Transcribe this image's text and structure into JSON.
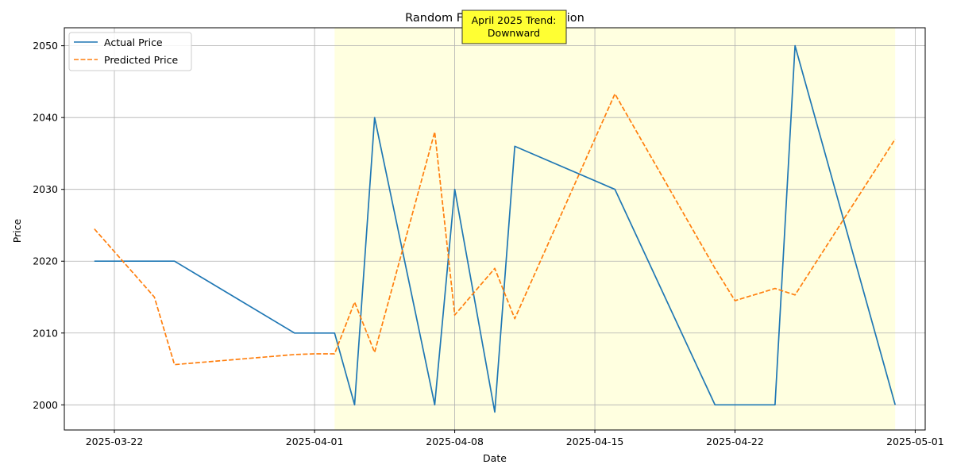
{
  "chart_data": {
    "type": "line",
    "title": "Random Forest Price Prediction",
    "xlabel": "Date",
    "ylabel": "Price",
    "x": [
      "2025-03-21",
      "2025-03-24",
      "2025-03-25",
      "2025-03-31",
      "2025-04-01",
      "2025-04-02",
      "2025-04-03",
      "2025-04-04",
      "2025-04-07",
      "2025-04-08",
      "2025-04-10",
      "2025-04-11",
      "2025-04-16",
      "2025-04-21",
      "2025-04-22",
      "2025-04-24",
      "2025-04-25",
      "2025-04-30"
    ],
    "series": [
      {
        "name": "Actual Price",
        "color": "#1f77b4",
        "dash": "solid",
        "values": [
          2020,
          2020,
          2020,
          2010,
          2010,
          2010,
          2000,
          2040,
          2000,
          2030,
          1999,
          2036,
          2030,
          2000,
          2000,
          2000,
          2050,
          2000
        ]
      },
      {
        "name": "Predicted Price",
        "color": "#ff7f0e",
        "dash": "dashed",
        "values": [
          2024.5,
          2015,
          2005.6,
          2007,
          2007.1,
          2007.1,
          2014.3,
          2007.3,
          2038,
          2012.5,
          2019,
          2012,
          2043.3,
          2019,
          2014.5,
          2016.2,
          2015.3,
          2037
        ]
      }
    ],
    "xticks": [
      "2025-03-22",
      "2025-04-01",
      "2025-04-08",
      "2025-04-15",
      "2025-04-22",
      "2025-05-01"
    ],
    "yticks": [
      2000,
      2010,
      2020,
      2030,
      2040,
      2050
    ],
    "xlim": [
      "2025-03-19T12:00",
      "2025-05-01T12:00"
    ],
    "ylim": [
      1996.5,
      2052.5
    ],
    "grid": true,
    "legend_position": "top-left",
    "highlight": {
      "start": "2025-04-02",
      "end": "2025-04-30",
      "color": "#ffffe0"
    },
    "annotation": {
      "lines": [
        "April 2025 Trend:",
        "Downward"
      ],
      "background": "#ffff33",
      "position": "top-center"
    }
  }
}
